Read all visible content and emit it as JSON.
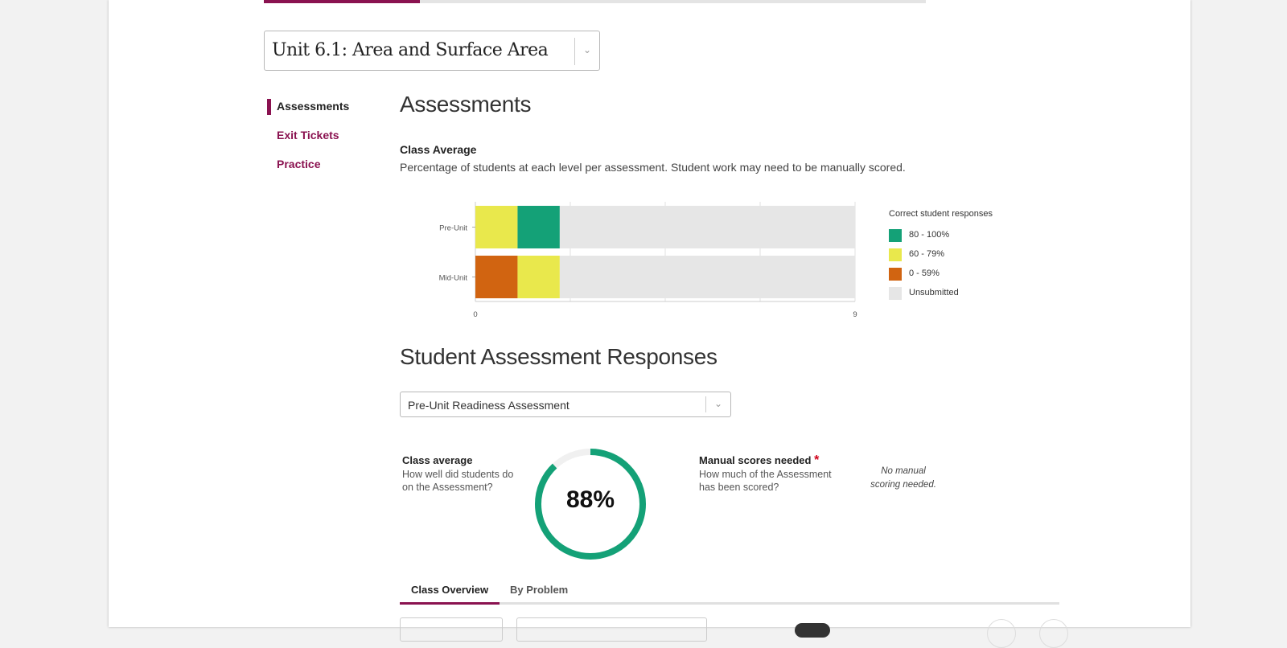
{
  "unit_select": {
    "value": "Unit 6.1: Area and Surface Area"
  },
  "top_progress": {
    "fraction": 0.236
  },
  "sidebar": {
    "items": [
      {
        "label": "Assessments",
        "active": true
      },
      {
        "label": "Exit Tickets",
        "active": false
      },
      {
        "label": "Practice",
        "active": false
      }
    ]
  },
  "main": {
    "heading": "Assessments",
    "class_average_title": "Class Average",
    "class_average_desc": "Percentage of students at each level per assessment. Student work may need to be manually scored."
  },
  "chart_data": {
    "type": "bar",
    "orientation": "horizontal",
    "stacked": true,
    "categories": [
      "Pre-Unit",
      "Mid-Unit"
    ],
    "series": [
      {
        "name": "0 - 59%",
        "color": "#d16411",
        "values": [
          0,
          1
        ]
      },
      {
        "name": "60 - 79%",
        "color": "#e9e84c",
        "values": [
          1,
          1
        ]
      },
      {
        "name": "80 - 100%",
        "color": "#14a177",
        "values": [
          1,
          0
        ]
      },
      {
        "name": "Unsubmitted",
        "color": "#e6e6e6",
        "values": [
          7,
          7
        ]
      }
    ],
    "xlim": [
      0,
      9
    ],
    "xticks": [
      "0",
      "9"
    ],
    "grid": true,
    "legend": {
      "title": "Correct student responses",
      "placement": "right",
      "items": [
        {
          "label": "80 - 100%",
          "color": "#14a177"
        },
        {
          "label": "60 - 79%",
          "color": "#e9e84c"
        },
        {
          "label": "0 - 59%",
          "color": "#d16411"
        },
        {
          "label": "Unsubmitted",
          "color": "#e6e6e6"
        }
      ]
    }
  },
  "responses": {
    "heading": "Student Assessment Responses",
    "assessment_select": "Pre-Unit Readiness Assessment",
    "class_avg_title": "Class average",
    "class_avg_sub1": "How well did students do",
    "class_avg_sub2": "on the Assessment?",
    "class_avg_value": "88%",
    "class_avg_fraction": 0.88,
    "manual_title": "Manual scores needed",
    "manual_required_mark": "*",
    "manual_sub1": "How much of the Assessment",
    "manual_sub2": "has been scored?",
    "manual_note1": "No manual",
    "manual_note2": "scoring needed."
  },
  "tabs": [
    {
      "label": "Class Overview",
      "active": true
    },
    {
      "label": "By Problem",
      "active": false
    }
  ],
  "colors": {
    "accent": "#8a1250",
    "ring": "#14a177",
    "ring_track": "#f0f0f0"
  }
}
